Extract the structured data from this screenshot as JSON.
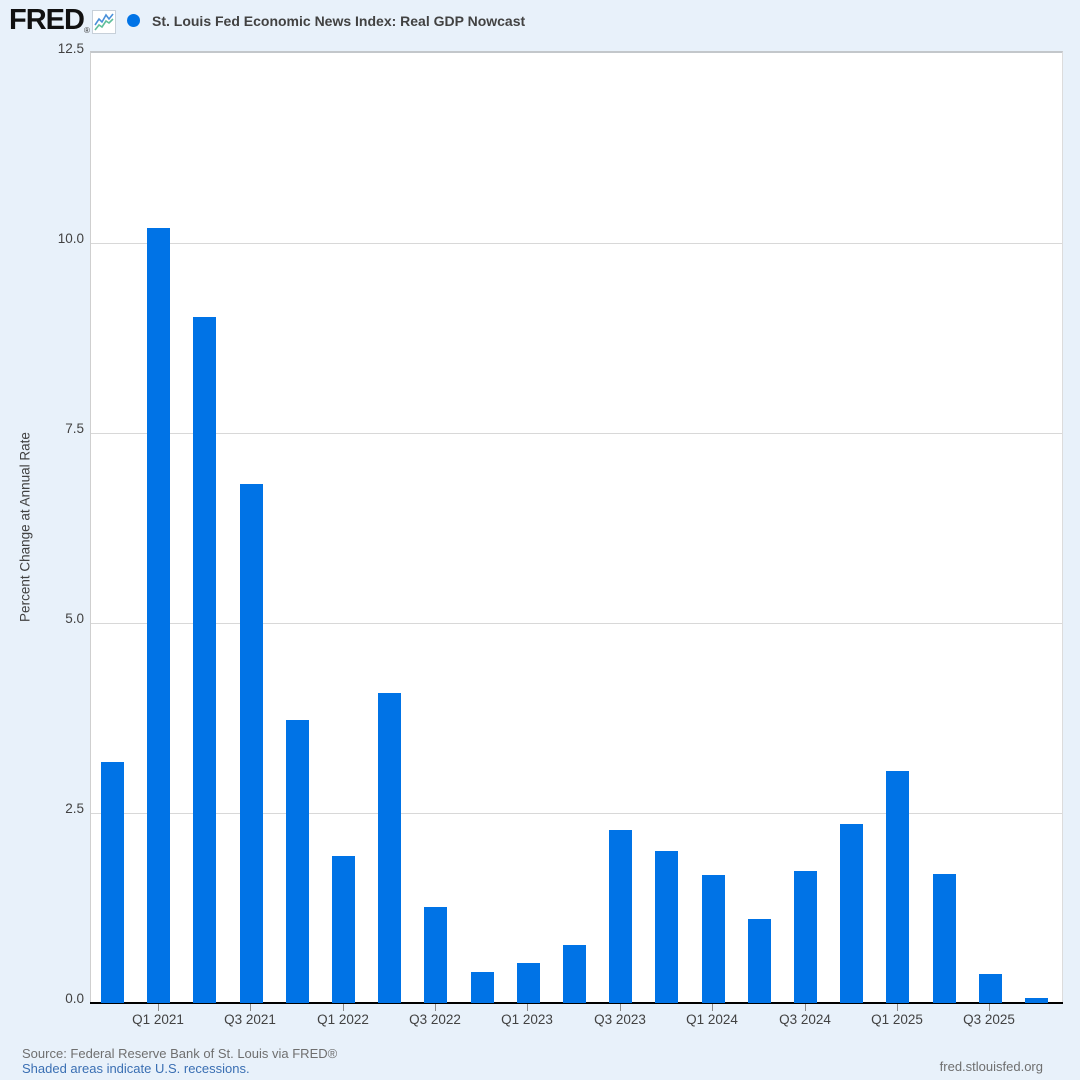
{
  "header": {
    "logo_text": "FRED",
    "registered_mark": "®",
    "title": "St. Louis Fed Economic News Index: Real GDP Nowcast",
    "series_color": "#0073e6"
  },
  "footer": {
    "source_text": "Source: Federal Reserve Bank of St. Louis via FRED®",
    "recessions_link_text": "Shaded areas indicate U.S. recessions.",
    "site_text": "fred.stlouisfed.org"
  },
  "chart_data": {
    "type": "bar",
    "title": "St. Louis Fed Economic News Index: Real GDP Nowcast",
    "xlabel": "",
    "ylabel": "Percent Change at Annual Rate",
    "ylim": [
      0,
      12.5
    ],
    "yticks": [
      0,
      2.5,
      5,
      7.5,
      10,
      12.5
    ],
    "ytick_labels": [
      "0.0",
      "2.5",
      "5.0",
      "7.5",
      "10.0",
      "12.5"
    ],
    "grid": true,
    "legend_position": "top",
    "bar_color": "#0073e6",
    "categories": [
      "Q4 2020",
      "Q1 2021",
      "Q2 2021",
      "Q3 2021",
      "Q4 2021",
      "Q1 2022",
      "Q2 2022",
      "Q3 2022",
      "Q4 2022",
      "Q1 2023",
      "Q2 2023",
      "Q3 2023",
      "Q4 2023",
      "Q1 2024",
      "Q2 2024",
      "Q3 2024",
      "Q4 2024",
      "Q1 2025",
      "Q2 2025",
      "Q3 2025",
      "Q4 2025"
    ],
    "values": [
      3.17,
      10.2,
      9.03,
      6.83,
      3.73,
      1.93,
      4.08,
      1.26,
      0.41,
      0.53,
      0.76,
      2.28,
      2.0,
      1.68,
      1.11,
      1.74,
      2.36,
      3.05,
      1.7,
      0.38,
      0.07
    ],
    "xtick_labels": [
      "Q1 2021",
      "Q3 2021",
      "Q1 2022",
      "Q3 2022",
      "Q1 2023",
      "Q3 2023",
      "Q1 2024",
      "Q3 2024",
      "Q1 2025",
      "Q3 2025"
    ],
    "xtick_every": 2,
    "xtick_start_index": 1
  }
}
